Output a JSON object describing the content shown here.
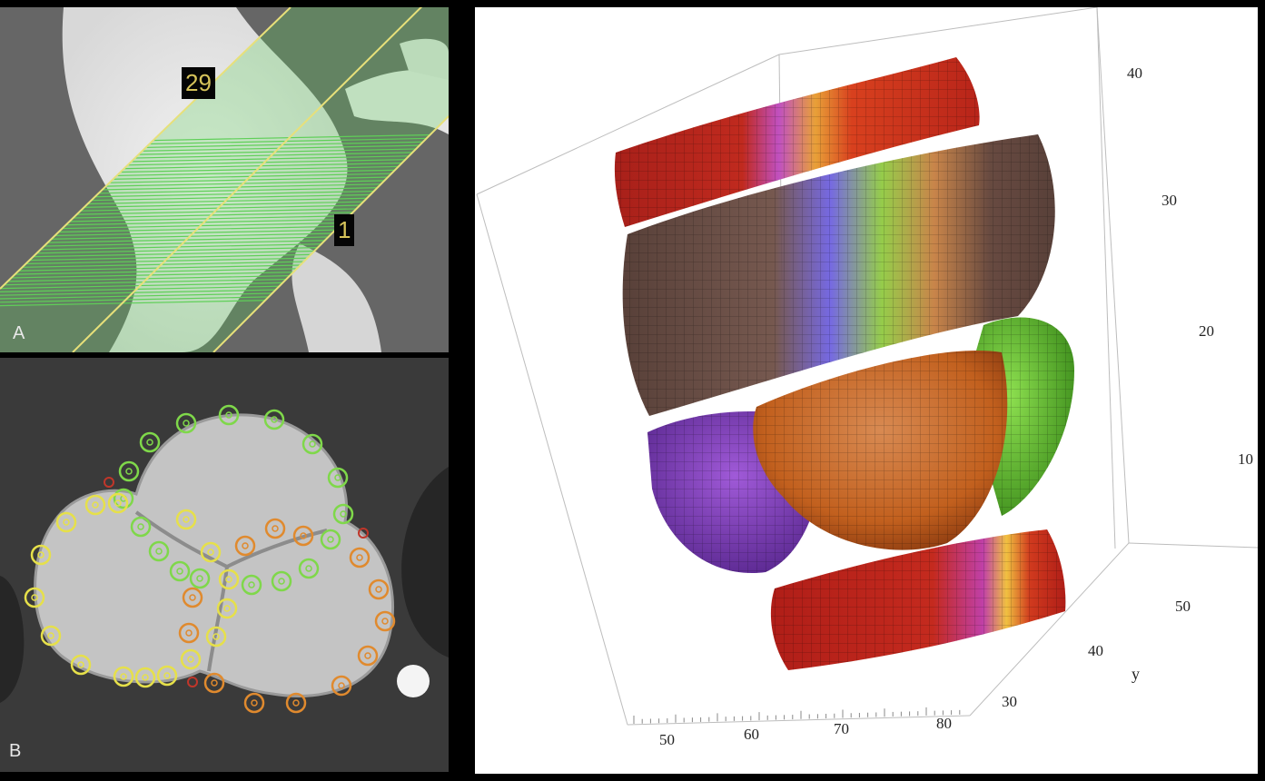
{
  "panel_a": {
    "letter": "A",
    "slice_labels": {
      "top": "29",
      "bottom": "1"
    },
    "overlay_color": "#5fcf58",
    "boundary_color": "#e7e07a"
  },
  "panel_b": {
    "letter": "B",
    "marker_colors": {
      "green": "#7fd84a",
      "yellow": "#e6e04a",
      "orange": "#e08a2e",
      "red": "#c0362a"
    }
  },
  "plot3d": {
    "z_ticks": [
      "40",
      "30",
      "20",
      "10"
    ],
    "y_ticks": [
      "50",
      "40",
      "30"
    ],
    "x_ticks": [
      "50",
      "60",
      "70",
      "80"
    ],
    "y_axis_name": "y",
    "surface_colors": {
      "red": "#c8281e",
      "brown": "#5a3a30",
      "purple": "#8a3ec8",
      "blue": "#6a5ce0",
      "green": "#6fc23a",
      "orange": "#d27a2a",
      "magenta": "#c050c0",
      "yellow": "#f0c040"
    }
  }
}
